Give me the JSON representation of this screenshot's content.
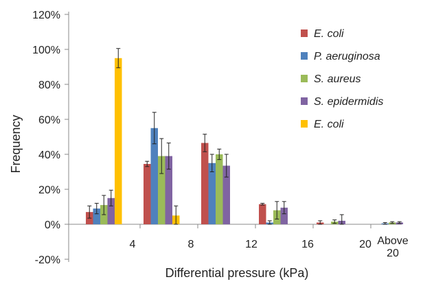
{
  "chart_data": {
    "type": "bar",
    "title": "",
    "xlabel": "Differential pressure (kPa)",
    "ylabel": "Frequency",
    "ylim": [
      -20,
      120
    ],
    "y_ticks": [
      "-20%",
      "0%",
      "20%",
      "40%",
      "60%",
      "80%",
      "100%",
      "120%"
    ],
    "y_tick_values": [
      -20,
      0,
      20,
      40,
      60,
      80,
      100,
      120
    ],
    "categories": [
      "0-4",
      "4-8",
      "8-12",
      "12-16",
      "16-20",
      "Above 20"
    ],
    "x_tick_labels": [
      "4",
      "8",
      "12",
      "16",
      "20",
      "Above\n20"
    ],
    "grid": false,
    "legend_position": "right",
    "error_bars": true,
    "series": [
      {
        "name": "E. coli",
        "color": "#C0504D",
        "values": [
          7,
          34.5,
          46.5,
          11.5,
          1,
          0
        ],
        "errors": [
          3.5,
          1.5,
          5,
          0.5,
          1,
          0
        ]
      },
      {
        "name": "P. aeruginosa",
        "color": "#4F81BD",
        "values": [
          9,
          55,
          35,
          1,
          0,
          0.5
        ],
        "errors": [
          3,
          9,
          5,
          1,
          0,
          0.5
        ]
      },
      {
        "name": "S. aureus",
        "color": "#9BBB59",
        "values": [
          11,
          39,
          40,
          8,
          1.5,
          1
        ],
        "errors": [
          5.5,
          10,
          3,
          5,
          1,
          0.5
        ]
      },
      {
        "name": "S. epidermidis",
        "color": "#8064A2",
        "values": [
          15,
          39,
          33.5,
          9.5,
          2,
          1
        ],
        "errors": [
          4.5,
          7.5,
          6.5,
          3.5,
          3.5,
          0.5
        ]
      },
      {
        "name": "E. coli",
        "color": "#FFC000",
        "values": [
          95,
          5,
          0,
          0,
          0,
          0
        ],
        "errors": [
          5.5,
          5.5,
          0,
          0,
          0,
          0
        ]
      }
    ]
  }
}
